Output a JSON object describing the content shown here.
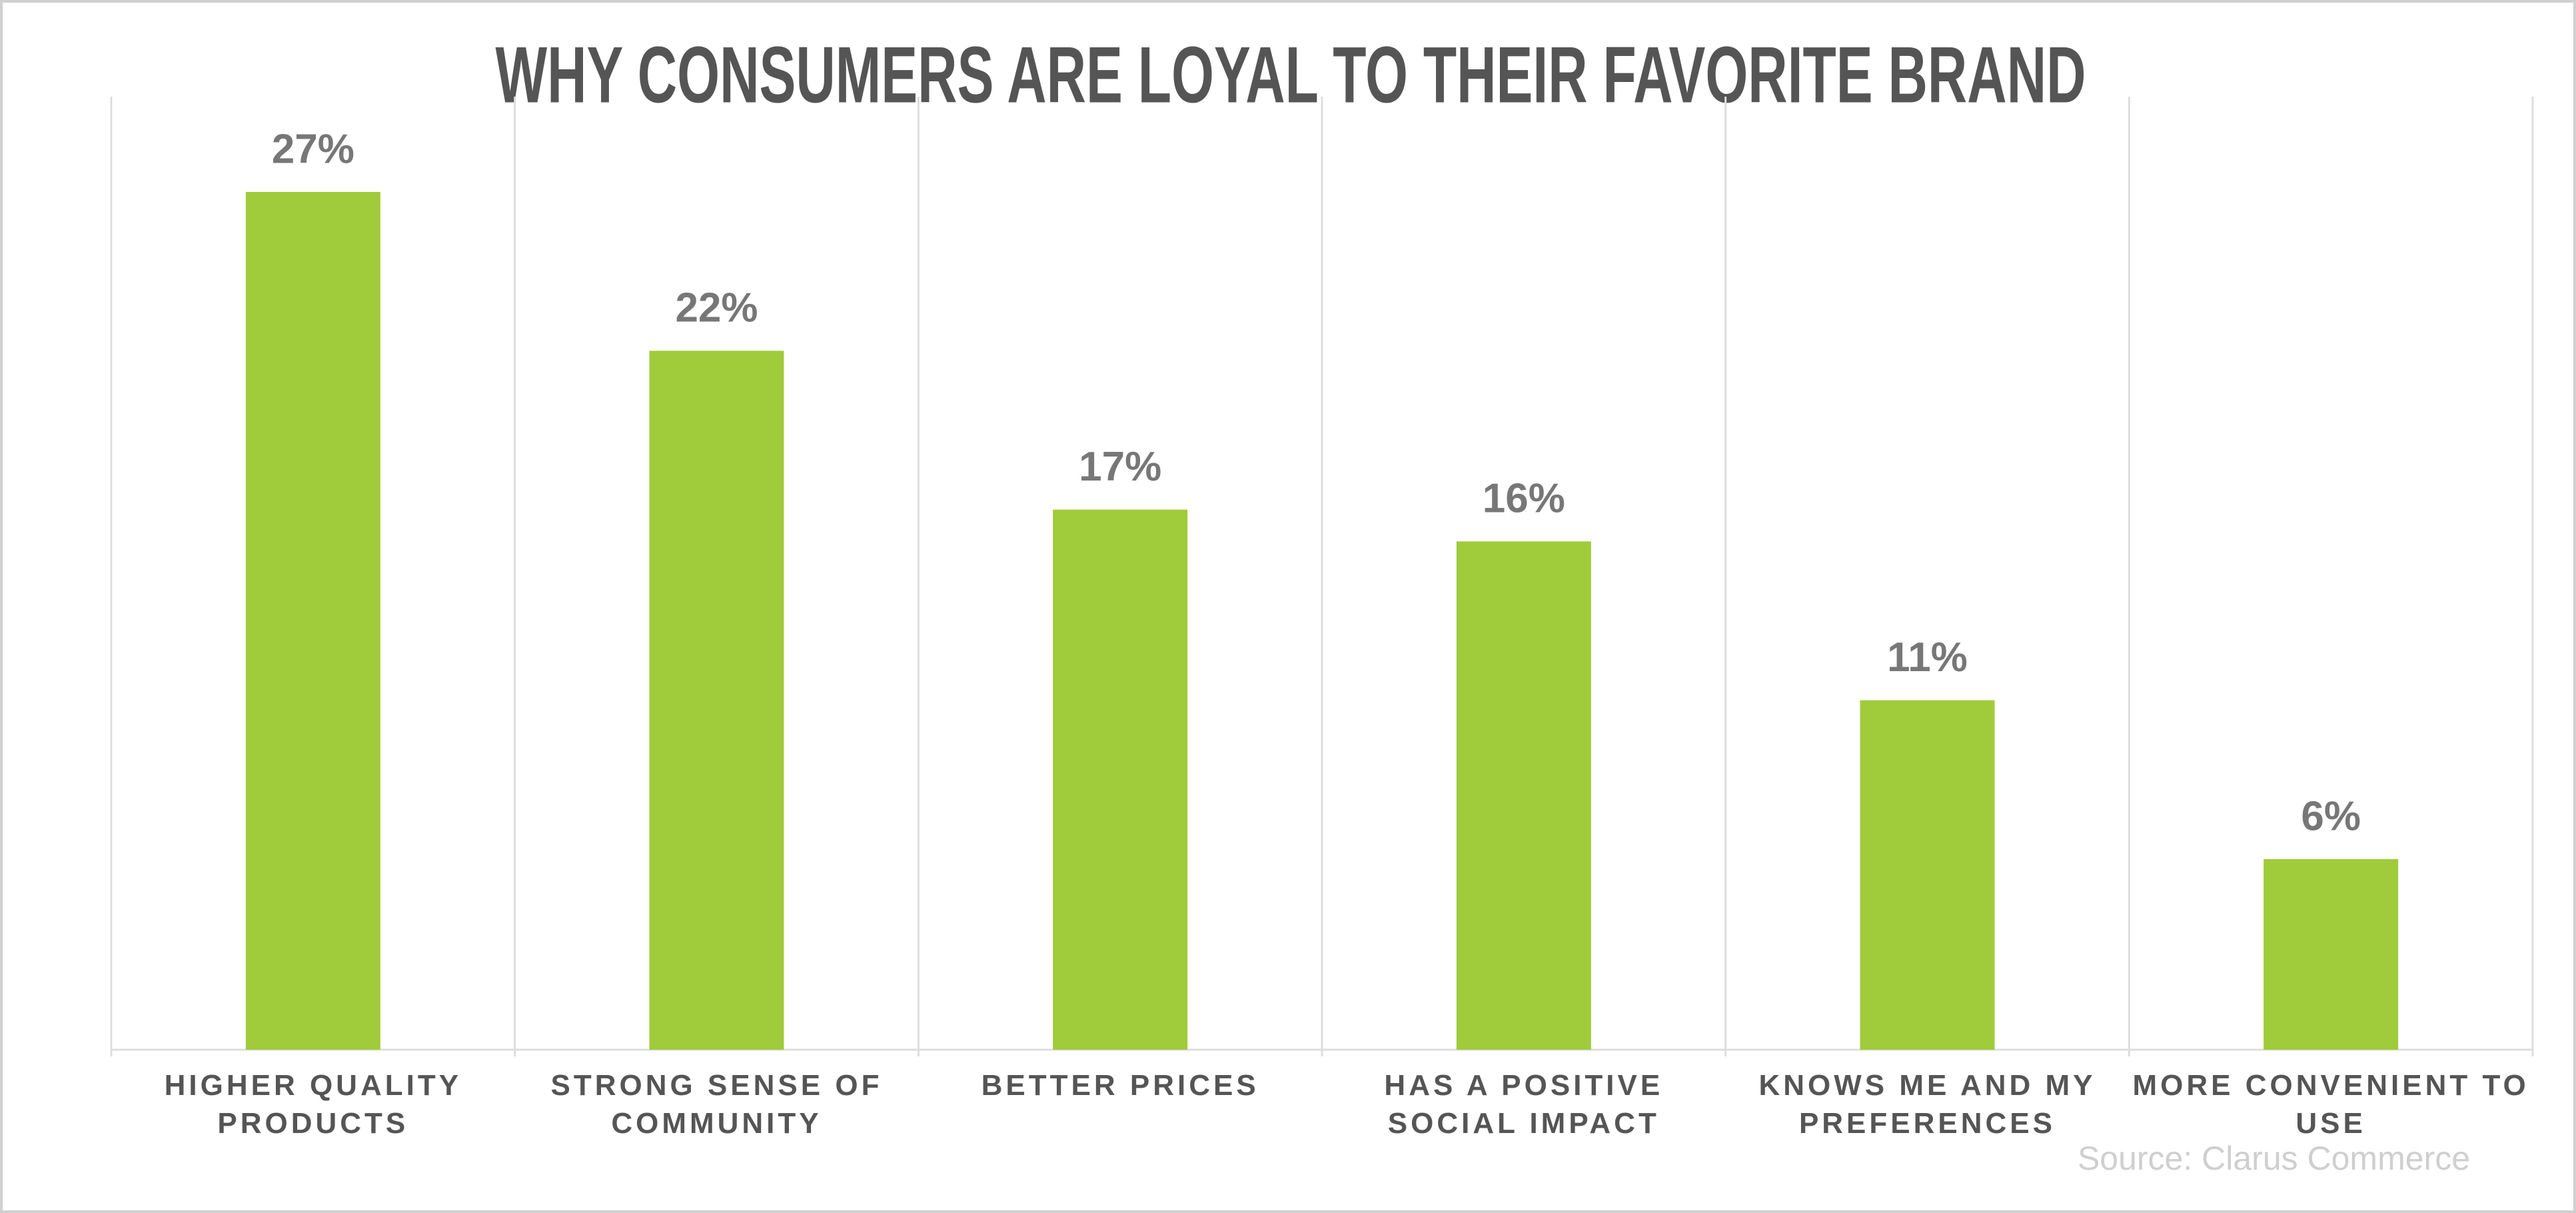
{
  "chart_data": {
    "type": "bar",
    "title": "WHY CONSUMERS ARE LOYAL TO THEIR FAVORITE BRAND",
    "categories": [
      "HIGHER QUALITY PRODUCTS",
      "STRONG SENSE OF COMMUNITY",
      "BETTER PRICES",
      "HAS A POSITIVE SOCIAL IMPACT",
      "KNOWS ME AND MY PREFERENCES",
      "MORE CONVENIENT TO USE"
    ],
    "values": [
      27,
      22,
      17,
      16,
      11,
      6
    ],
    "value_labels": [
      "27%",
      "22%",
      "17%",
      "16%",
      "11%",
      "6%"
    ],
    "color": "#a0cb3a",
    "source": "Source: Clarus Commerce"
  }
}
